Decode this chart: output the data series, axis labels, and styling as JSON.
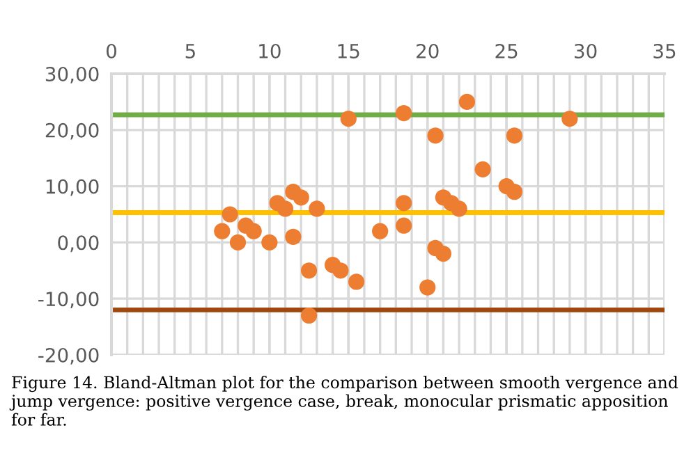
{
  "chart_data": {
    "type": "scatter",
    "x": [
      15,
      18.5,
      22.5,
      29,
      20.5,
      25.5,
      23.5,
      25,
      25.5,
      11.5,
      12,
      10.5,
      11,
      13,
      7.5,
      7,
      8.5,
      9,
      8,
      10,
      11.5,
      18.5,
      18.5,
      17,
      21,
      21.5,
      22,
      20.5,
      21,
      12.5,
      14,
      14.5,
      15.5,
      20,
      12.5
    ],
    "series": [
      {
        "color": "#ed7d31",
        "values": [
          22,
          23,
          25,
          22,
          19,
          19,
          13,
          10,
          9,
          9,
          8,
          7,
          6,
          6,
          5,
          2,
          3,
          2,
          0,
          0,
          1,
          7,
          3,
          2,
          8,
          7,
          6,
          -1,
          -2,
          -5,
          -4,
          -5,
          -7,
          -8,
          -13
        ]
      }
    ],
    "xlim": [
      0,
      35
    ],
    "xticks": [
      0,
      5,
      10,
      15,
      20,
      25,
      30,
      35
    ],
    "ylim": [
      -20,
      30
    ],
    "yticks": [
      {
        "value": -20,
        "label": "-20,00"
      },
      {
        "value": -10,
        "label": "-10,00"
      },
      {
        "value": 0,
        "label": "0,00"
      },
      {
        "value": 10,
        "label": "10,00"
      },
      {
        "value": 20,
        "label": "20,00"
      },
      {
        "value": 30,
        "label": "30,00"
      }
    ],
    "ref_lines": [
      {
        "axis": "y",
        "value": 22.7,
        "color": "#70ad47"
      },
      {
        "axis": "y",
        "value": 5.3,
        "color": "#ffc000"
      },
      {
        "axis": "y",
        "value": -12,
        "color": "#9e480e"
      }
    ],
    "grid": true,
    "marker": "circle",
    "annotations": [
      "Figure 14. Bland-Altman plot for the comparison between smooth vergence and jump vergence: positive vergence case, break, monocular prismatic apposition for far."
    ]
  }
}
